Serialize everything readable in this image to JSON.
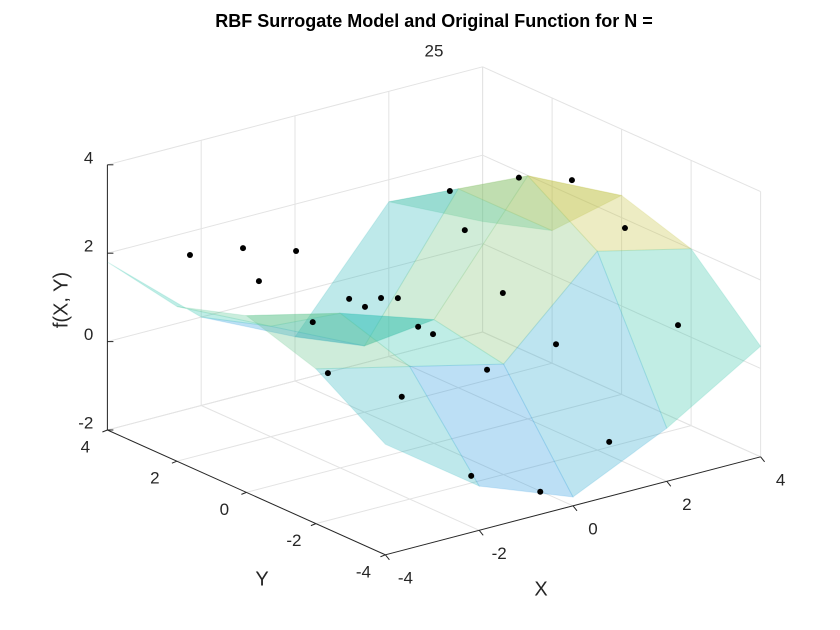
{
  "chart_data": {
    "type": "surface3d",
    "title": "RBF Surrogate Model and Original Function for N =",
    "n": 25,
    "xlabel": "X",
    "ylabel": "Y",
    "zlabel": "f(X, Y)",
    "xlim": [
      -4,
      4
    ],
    "ylim": [
      -4,
      4
    ],
    "zlim": [
      -2,
      4
    ],
    "xticks": [
      -4,
      -2,
      0,
      2,
      4
    ],
    "yticks": [
      -4,
      -2,
      0,
      2,
      4
    ],
    "zticks": [
      -2,
      0,
      2,
      4
    ],
    "grid": true,
    "colormap": [
      "#3e26a8",
      "#1f8fe5",
      "#2cc4a9",
      "#c0bc3a",
      "#f9fb15"
    ],
    "surface_alpha": 0.3,
    "surface": {
      "x": [
        -4,
        -2,
        0,
        2,
        4
      ],
      "y": [
        -4,
        -2,
        0,
        2,
        4
      ],
      "z": [
        [
          0.5,
          -1.0,
          -1.8,
          -0.8,
          0.5
        ],
        [
          1.5,
          1.0,
          0.5,
          2.5,
          2.0
        ],
        [
          2.0,
          1.5,
          0.8,
          3.5,
          2.5
        ],
        [
          1.5,
          0.5,
          -0.5,
          2.5,
          1.0
        ],
        [
          1.8,
          0.0,
          -1.0,
          1.5,
          0.5
        ]
      ]
    },
    "points": {
      "color": "#000000",
      "x": [
        -2.61,
        -2.22,
        -1.51,
        -2.2,
        0.23,
        -0.78,
        -2.18,
        -0.36,
        -1.87,
        -0.4,
        -1.82,
        0.72,
        -2.91,
        2.19,
        3.25,
        0.39,
        2.95,
        1.81,
        1.49,
        2.2,
        2.59,
        2.98,
        0.92,
        -0.55,
        -1.8
      ],
      "y": [
        3.5,
        2.5,
        3,
        1,
        3.8,
        2,
        -0.5,
        1.5,
        -1,
        0.5,
        -2,
        1,
        -3,
        2.5,
        3.5,
        -1,
        2,
        0,
        -1.5,
        -1,
        -2,
        -3,
        -3.8,
        -3.8,
        -3.5
      ],
      "z": [
        1.75,
        2.15,
        1.03,
        2.61,
        -0.66,
        -0.9,
        2.05,
        0.66,
        2.16,
        1.22,
        1.85,
        -0.08,
        0.92,
        2.22,
        0.69,
        -0.09,
        -0.12,
        3.51,
        0.36,
        3.7,
        2.86,
        0.91,
        -0.88,
        -1.6,
        -1.0
      ]
    }
  }
}
